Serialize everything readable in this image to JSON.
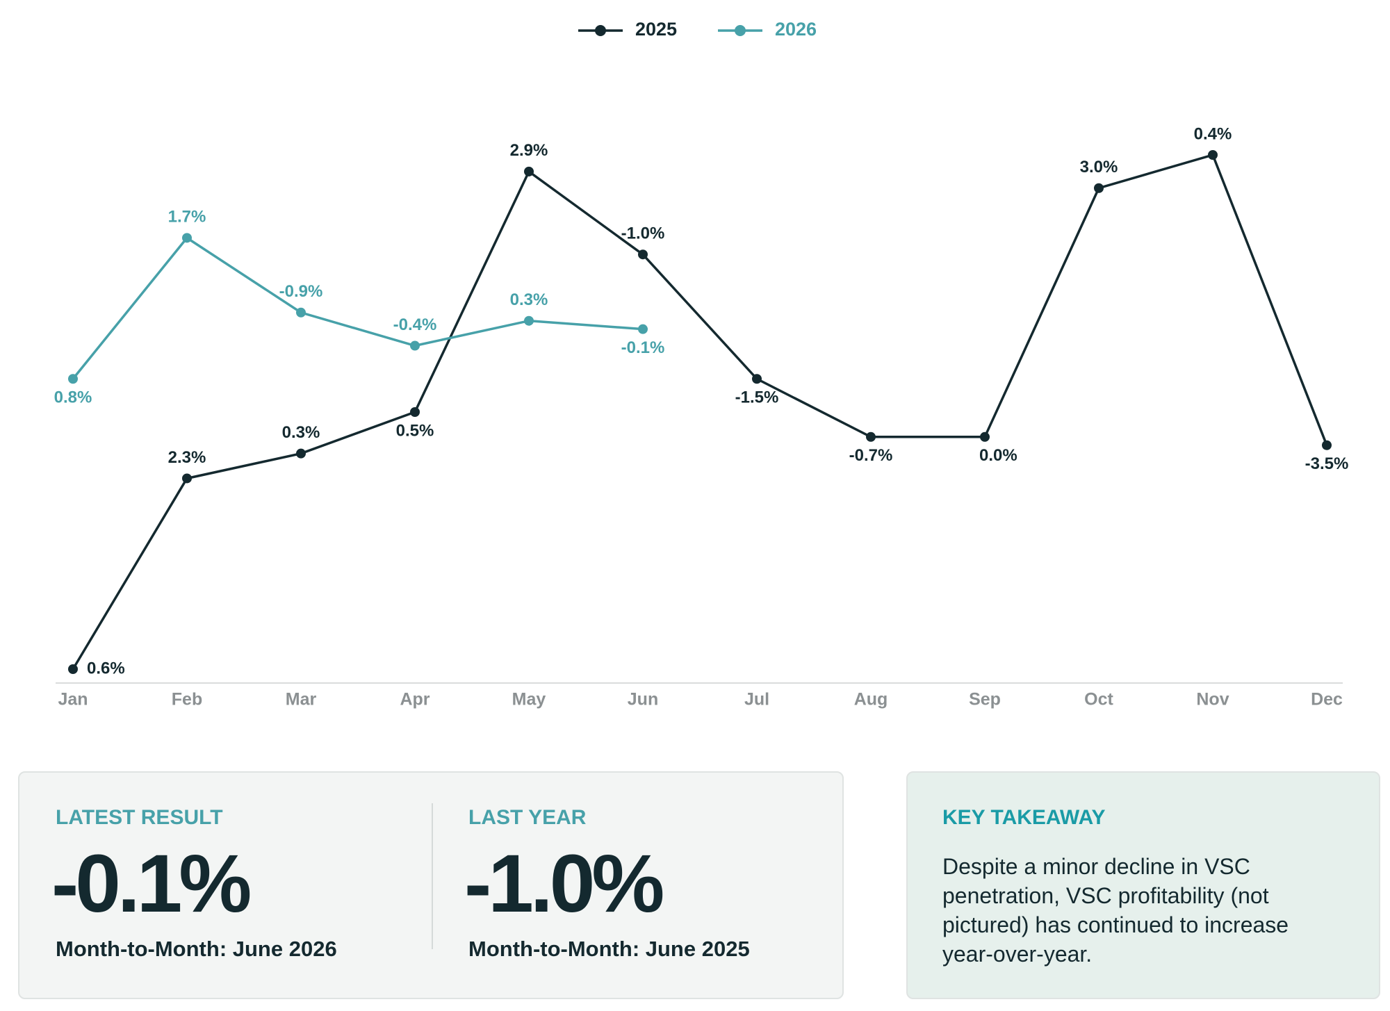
{
  "chart_data": {
    "type": "line",
    "categories": [
      "Jan",
      "Feb",
      "Mar",
      "Apr",
      "May",
      "Jun",
      "Jul",
      "Aug",
      "Sep",
      "Oct",
      "Nov",
      "Dec"
    ],
    "series": [
      {
        "name": "2025",
        "color": "#14292f",
        "values": [
          0.6,
          2.3,
          0.3,
          0.5,
          2.9,
          -1.0,
          -1.5,
          -0.7,
          0.0,
          3.0,
          0.4,
          -3.5
        ],
        "value_labels": [
          "0.6%",
          "2.3%",
          "0.3%",
          "0.5%",
          "2.9%",
          "-1.0%",
          "-1.5%",
          "-0.7%",
          "0.0%",
          "3.0%",
          "0.4%",
          "-3.5%"
        ]
      },
      {
        "name": "2026",
        "color": "#47a1a9",
        "values": [
          0.8,
          1.7,
          -0.9,
          -0.4,
          0.3,
          -0.1,
          null,
          null,
          null,
          null,
          null,
          null
        ],
        "value_labels": [
          "0.8%",
          "1.7%",
          "-0.9%",
          "-0.4%",
          "0.3%",
          "-0.1%",
          null,
          null,
          null,
          null,
          null,
          null
        ]
      }
    ],
    "legend": "top"
  },
  "cards": [
    {
      "label": "LATEST RESULT",
      "value": "-0.1%",
      "caption": "Month-to-Month: June 2026"
    },
    {
      "label": "LAST YEAR",
      "value": "-1.0%",
      "caption": "Month-to-Month: June 2025"
    }
  ],
  "takeaway": {
    "title": "KEY TAKEAWAY",
    "text": "Despite a minor decline in VSC penetration, VSC profitability (not pictured) has continued to increase year-over-year."
  }
}
